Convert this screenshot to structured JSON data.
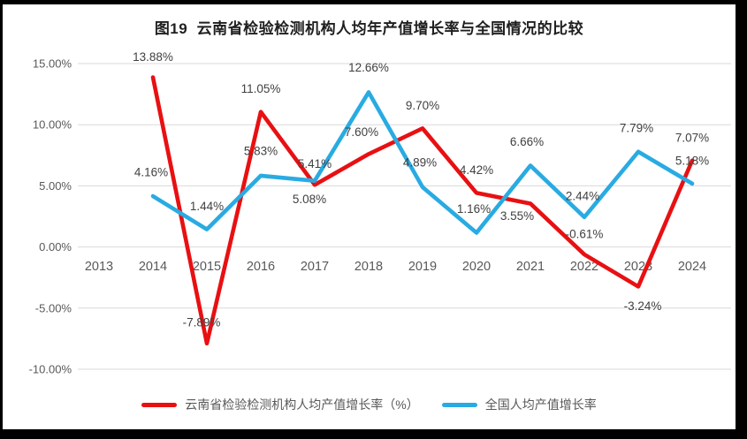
{
  "title": "图19  云南省检验检测机构人均年产值增长率与全国情况的比较",
  "colors": {
    "yunnan": "#E81012",
    "national": "#29ABE2",
    "gridline": "#D9D9D9",
    "axis_text": "#595959",
    "label_text": "#404040",
    "title_text": "#1F1F1F",
    "frame": "#000000",
    "background": "#FFFFFF"
  },
  "chart_data": {
    "type": "line",
    "title": "图19  云南省检验检测机构人均年产值增长率与全国情况的比较",
    "categories": [
      "2013",
      "2014",
      "2015",
      "2016",
      "2017",
      "2018",
      "2019",
      "2020",
      "2021",
      "2022",
      "2023",
      "2024"
    ],
    "series": [
      {
        "name": "云南省检验检测机构人均产值增长率（%）",
        "color_key": "yunnan",
        "values": [
          null,
          13.88,
          -7.89,
          11.05,
          5.08,
          7.6,
          9.7,
          4.42,
          3.55,
          -0.61,
          -3.24,
          7.07
        ]
      },
      {
        "name": "全国人均产值增长率",
        "color_key": "national",
        "values": [
          null,
          4.16,
          1.44,
          5.83,
          5.41,
          12.66,
          4.89,
          1.16,
          6.66,
          2.44,
          7.79,
          5.18
        ]
      }
    ],
    "y_axis": {
      "ticks": [
        "15.00%",
        "10.00%",
        "5.00%",
        "0.00%",
        "-5.00%",
        "-10.00%"
      ],
      "tick_values": [
        15,
        10,
        5,
        0,
        -5,
        -10
      ],
      "min": -10,
      "max": 15
    },
    "grid": true,
    "data_labels": true,
    "data_label_format": "0.00%",
    "legend_position": "bottom"
  }
}
